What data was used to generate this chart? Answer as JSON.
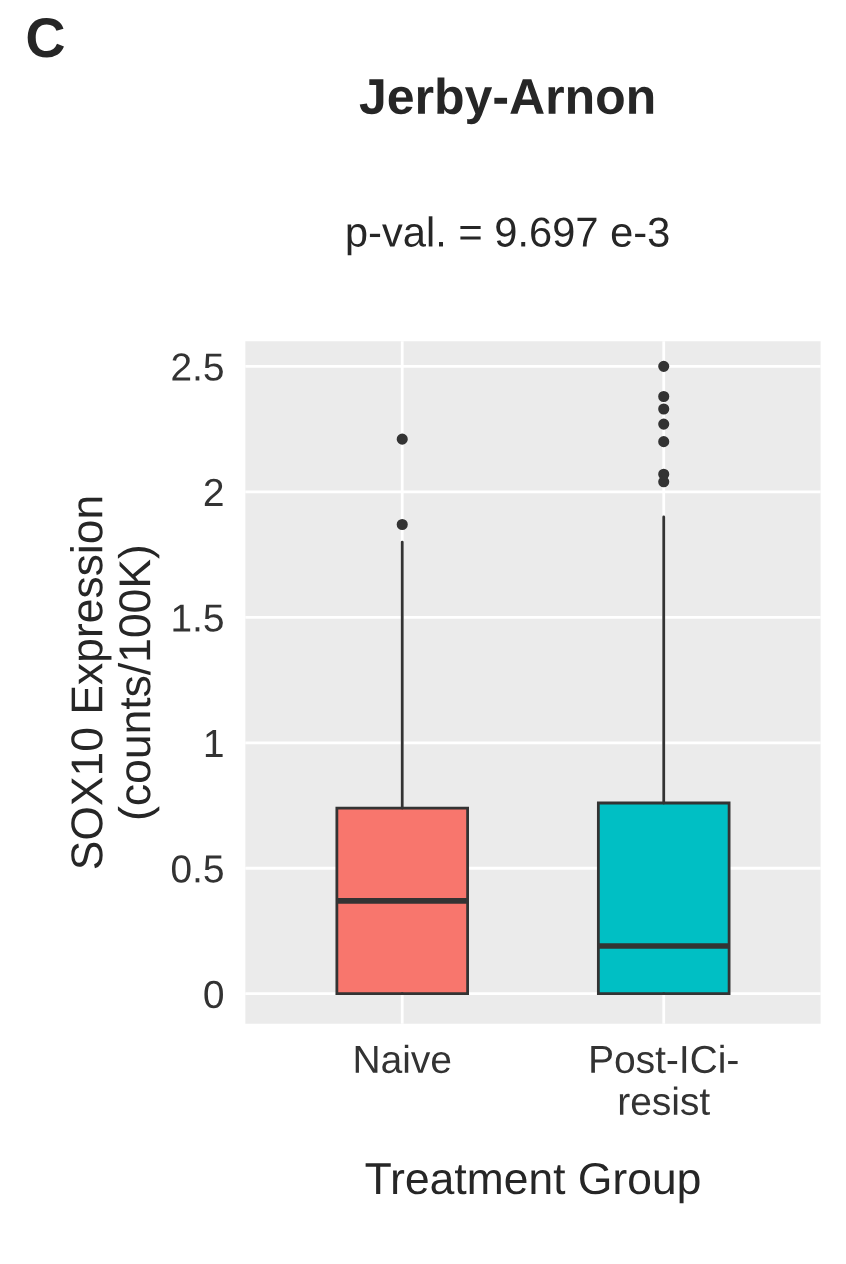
{
  "chart_data": {
    "type": "box",
    "title": "Jerby-Arnon",
    "subtitle": "p-val. = 9.697 e-3",
    "xlabel": "Treatment Group",
    "ylabel": "SOX10 Expression\n(counts/100K)",
    "annotations": [
      "C"
    ],
    "categories": [
      "Naive",
      "Post-ICi-\nresist"
    ],
    "colors": [
      "#f8766d",
      "#00bfc4"
    ],
    "boxes": [
      {
        "low": 0,
        "q1": 0,
        "median": 0.37,
        "q3": 0.74,
        "high": 1.8,
        "outliers": [
          1.87,
          2.21
        ]
      },
      {
        "low": 0,
        "q1": 0,
        "median": 0.19,
        "q3": 0.76,
        "high": 1.9,
        "outliers": [
          2.04,
          2.07,
          2.2,
          2.27,
          2.33,
          2.38,
          2.5
        ]
      }
    ],
    "ylim": [
      -0.12,
      2.6
    ],
    "yticks": [
      0,
      0.5,
      1,
      1.5,
      2,
      2.5
    ],
    "grid": true
  }
}
